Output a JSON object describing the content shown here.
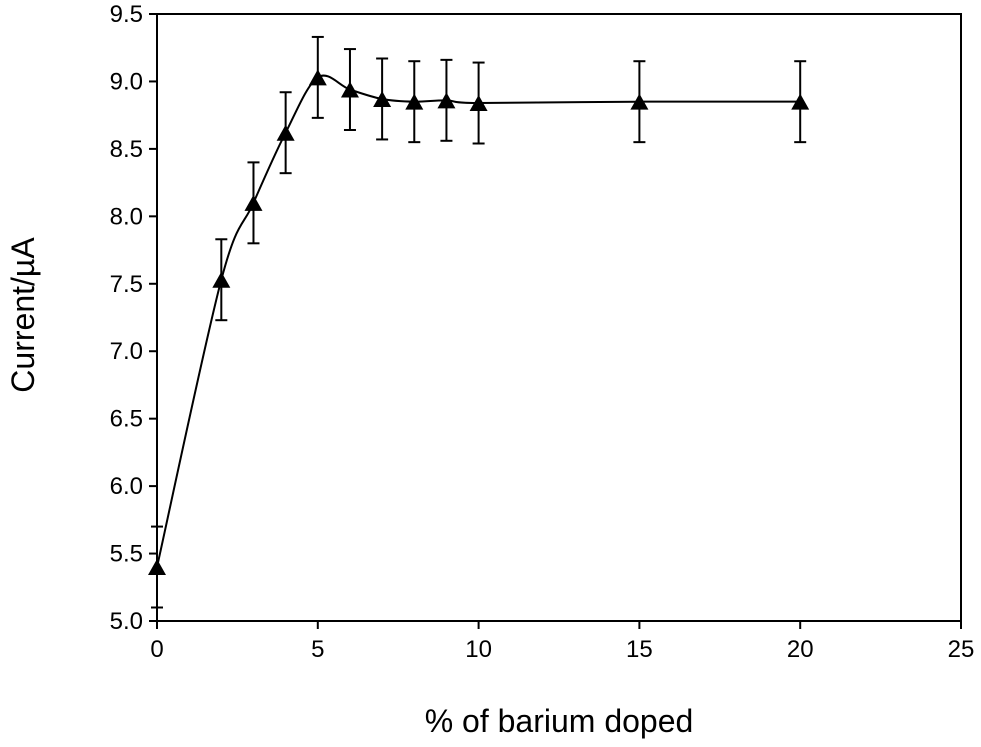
{
  "chart_data": {
    "type": "scatter",
    "title": "",
    "xlabel": "% of barium doped",
    "ylabel": "Current/µA",
    "xlim": [
      0,
      25
    ],
    "ylim": [
      5.0,
      9.5
    ],
    "x_ticks": [
      "0",
      "5",
      "10",
      "15",
      "20",
      "25"
    ],
    "y_ticks": [
      "5.0",
      "5.5",
      "6.0",
      "6.5",
      "7.0",
      "7.5",
      "8.0",
      "8.5",
      "9.0",
      "9.5"
    ],
    "grid": false,
    "legend": "none",
    "marker": "triangle",
    "line": "smooth",
    "color": "#000000",
    "series": [
      {
        "x": [
          0,
          2,
          3,
          4,
          5,
          6,
          7,
          8,
          9,
          10,
          15,
          20
        ],
        "y": [
          5.4,
          7.53,
          8.1,
          8.62,
          9.03,
          8.94,
          8.87,
          8.85,
          8.86,
          8.84,
          8.85,
          8.85
        ],
        "error": [
          0.3,
          0.3,
          0.3,
          0.3,
          0.3,
          0.3,
          0.3,
          0.3,
          0.3,
          0.3,
          0.3,
          0.3
        ]
      }
    ]
  }
}
